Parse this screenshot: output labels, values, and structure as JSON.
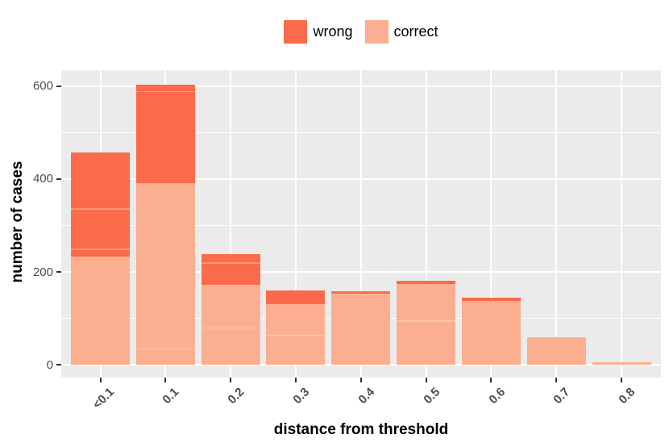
{
  "chart_data": {
    "type": "bar",
    "stacked": true,
    "title": "",
    "xlabel": "distance from threshold",
    "ylabel": "number of cases",
    "categories": [
      "<0.1",
      "0.1",
      "0.2",
      "0.3",
      "0.4",
      "0.5",
      "0.6",
      "0.7",
      "0.8"
    ],
    "series": [
      {
        "name": "wrong",
        "color": "#FB6A4A",
        "values": [
          223,
          211,
          66,
          30,
          6,
          6,
          6,
          0,
          0
        ]
      },
      {
        "name": "correct",
        "color": "#FCAE91",
        "values": [
          234,
          392,
          172,
          130,
          153,
          175,
          138,
          60,
          5
        ]
      }
    ],
    "totals": [
      457,
      603,
      238,
      160,
      159,
      181,
      144,
      60,
      5
    ],
    "ylim": [
      -27,
      634
    ],
    "yticks": [
      0,
      200,
      400,
      600
    ],
    "yminor": [
      100,
      300,
      500
    ],
    "grid": "on",
    "legend_position": "top",
    "panel_background": "#EBEBEB",
    "gridline_color": "#FFFFFF",
    "axis_text_color": "#4D4D4D",
    "tick_mark_color": "#333333",
    "seams": [
      [
        250,
        337
      ],
      [
        36,
        590
      ],
      [
        81,
        221
      ],
      [
        65
      ],
      [],
      [
        96
      ],
      [],
      [],
      []
    ]
  },
  "legend": {
    "items": [
      {
        "label": "wrong",
        "color": "#FB6A4A"
      },
      {
        "label": "correct",
        "color": "#FCAE91"
      }
    ]
  }
}
